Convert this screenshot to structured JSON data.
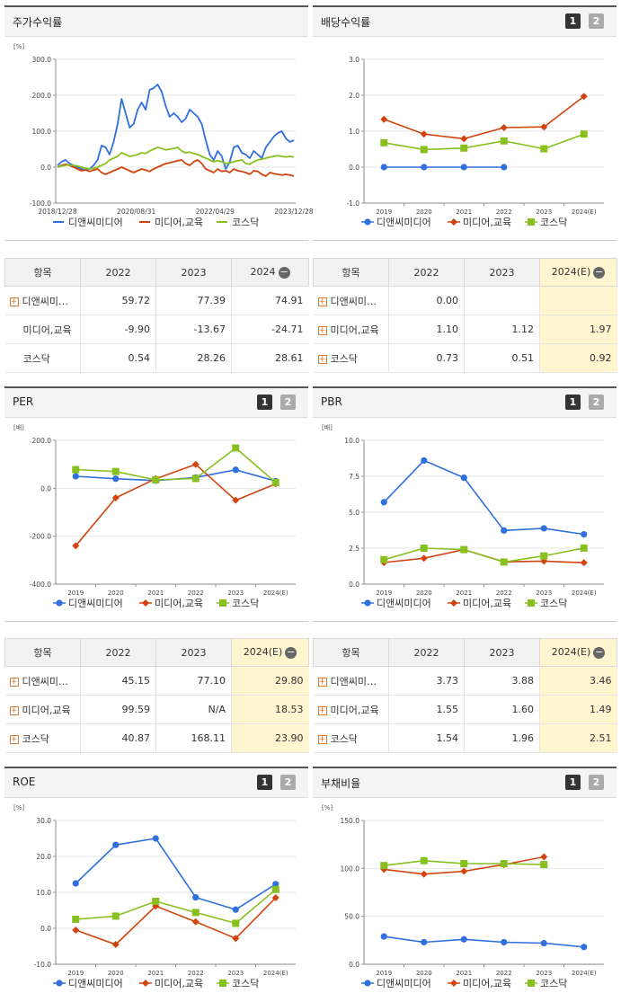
{
  "legend": {
    "s1": "디앤씨미디어",
    "s2": "미디어,교육",
    "s3": "코스닥"
  },
  "colors": {
    "s1": "#2f6fde",
    "s2": "#d2440f",
    "s3": "#88c020"
  },
  "buttons": {
    "one": "1",
    "two": "2"
  },
  "panels": {
    "stock": {
      "title": "주가수익률",
      "unit": "[%]"
    },
    "dividend": {
      "title": "배당수익률",
      "unit": ""
    },
    "per": {
      "title": "PER",
      "unit": "[배]"
    },
    "pbr": {
      "title": "PBR",
      "unit": "[배]"
    },
    "roe": {
      "title": "ROE",
      "unit": "[%]"
    },
    "debt": {
      "title": "부채비율",
      "unit": "[%]"
    }
  },
  "tables": {
    "stock": {
      "headers": [
        "항목",
        "2022",
        "2023",
        "2024"
      ],
      "rows": [
        {
          "name": "디앤씨미…",
          "v": [
            "59.72",
            "77.39",
            "74.91"
          ]
        },
        {
          "name": "미디어,교육",
          "v": [
            "-9.90",
            "-13.67",
            "-24.71"
          ]
        },
        {
          "name": "코스닥",
          "v": [
            "0.54",
            "28.26",
            "28.61"
          ]
        }
      ]
    },
    "dividend": {
      "headers": [
        "항목",
        "2022",
        "2023",
        "2024(E)"
      ],
      "rows": [
        {
          "name": "디앤씨미…",
          "v": [
            "0.00",
            "",
            ""
          ]
        },
        {
          "name": "미디어,교육",
          "v": [
            "1.10",
            "1.12",
            "1.97"
          ]
        },
        {
          "name": "코스닥",
          "v": [
            "0.73",
            "0.51",
            "0.92"
          ]
        }
      ]
    },
    "per": {
      "headers": [
        "항목",
        "2022",
        "2023",
        "2024(E)"
      ],
      "rows": [
        {
          "name": "디앤씨미…",
          "v": [
            "45.15",
            "77.10",
            "29.80"
          ]
        },
        {
          "name": "미디어,교육",
          "v": [
            "99.59",
            "N/A",
            "18.53"
          ]
        },
        {
          "name": "코스닥",
          "v": [
            "40.87",
            "168.11",
            "23.90"
          ]
        }
      ]
    },
    "pbr": {
      "headers": [
        "항목",
        "2022",
        "2023",
        "2024(E)"
      ],
      "rows": [
        {
          "name": "디앤씨미…",
          "v": [
            "3.73",
            "3.88",
            "3.46"
          ]
        },
        {
          "name": "미디어,교육",
          "v": [
            "1.55",
            "1.60",
            "1.49"
          ]
        },
        {
          "name": "코스닥",
          "v": [
            "1.54",
            "1.96",
            "2.51"
          ]
        }
      ]
    }
  },
  "chart_data": [
    {
      "id": "stock",
      "type": "line",
      "title": "주가수익률",
      "ylabel": "[%]",
      "ylim": [
        -100,
        300
      ],
      "yticks": [
        "-100.0",
        "0.0",
        "100.0",
        "200.0",
        "300.0"
      ],
      "xticks": [
        "2018/12/28",
        "2020/08/31",
        "2022/04/29",
        "2023/12/28"
      ],
      "n": 60,
      "series": [
        {
          "name": "디앤씨미디어",
          "values": [
            5,
            15,
            20,
            10,
            5,
            0,
            -5,
            -8,
            -5,
            5,
            20,
            60,
            55,
            35,
            70,
            120,
            190,
            150,
            110,
            120,
            160,
            180,
            160,
            215,
            220,
            230,
            210,
            170,
            140,
            150,
            140,
            125,
            135,
            160,
            150,
            140,
            120,
            75,
            35,
            20,
            45,
            30,
            -5,
            15,
            55,
            60,
            40,
            35,
            25,
            45,
            35,
            25,
            55,
            70,
            85,
            95,
            100,
            80,
            70,
            75
          ]
        },
        {
          "name": "미디어,교육",
          "values": [
            0,
            5,
            8,
            5,
            0,
            -5,
            -10,
            -8,
            -12,
            -8,
            -5,
            -15,
            -20,
            -15,
            -10,
            -5,
            0,
            -5,
            -10,
            -15,
            -10,
            -5,
            -8,
            -12,
            -5,
            0,
            5,
            10,
            12,
            15,
            18,
            20,
            10,
            5,
            15,
            20,
            10,
            -5,
            -10,
            -15,
            -5,
            -12,
            -10,
            -15,
            -5,
            -10,
            -12,
            -15,
            -20,
            -10,
            -12,
            -20,
            -25,
            -15,
            -18,
            -20,
            -22,
            -20,
            -22,
            -25
          ]
        },
        {
          "name": "코스닥",
          "values": [
            0,
            3,
            5,
            6,
            5,
            3,
            0,
            -3,
            -5,
            -3,
            0,
            5,
            10,
            20,
            25,
            30,
            40,
            35,
            30,
            32,
            35,
            40,
            38,
            45,
            50,
            55,
            52,
            48,
            50,
            52,
            55,
            45,
            40,
            42,
            38,
            35,
            30,
            25,
            20,
            15,
            18,
            15,
            10,
            12,
            15,
            18,
            20,
            10,
            8,
            15,
            20,
            22,
            25,
            28,
            30,
            32,
            30,
            28,
            30,
            28
          ]
        }
      ]
    },
    {
      "id": "dividend",
      "type": "line",
      "title": "배당수익률",
      "ylim": [
        -1,
        3
      ],
      "yticks": [
        "-1.0",
        "0.0",
        "1.0",
        "2.0",
        "3.0"
      ],
      "categories": [
        "2019",
        "2020",
        "2021",
        "2022",
        "2023",
        "2024(E)"
      ],
      "series": [
        {
          "name": "디앤씨미디어",
          "values": [
            0,
            0,
            0,
            0,
            null,
            null
          ]
        },
        {
          "name": "미디어,교육",
          "values": [
            1.33,
            0.92,
            0.79,
            1.1,
            1.12,
            1.97
          ]
        },
        {
          "name": "코스닥",
          "values": [
            0.68,
            0.49,
            0.53,
            0.73,
            0.51,
            0.92
          ]
        }
      ]
    },
    {
      "id": "per",
      "type": "line",
      "title": "PER",
      "ylabel": "[배]",
      "ylim": [
        -400,
        200
      ],
      "yticks": [
        "-400.0",
        "-200.0",
        "0.0",
        "200.0"
      ],
      "categories": [
        "2019",
        "2020",
        "2021",
        "2022",
        "2023",
        "2024(E)"
      ],
      "series": [
        {
          "name": "디앤씨미디어",
          "values": [
            50,
            40,
            32,
            45.15,
            77.1,
            29.8
          ]
        },
        {
          "name": "미디어,교육",
          "values": [
            -240,
            -40,
            40,
            99.59,
            -50,
            18.53
          ]
        },
        {
          "name": "코스닥",
          "values": [
            78,
            70,
            35,
            40.87,
            168.11,
            23.9
          ]
        }
      ]
    },
    {
      "id": "pbr",
      "type": "line",
      "title": "PBR",
      "ylabel": "[배]",
      "ylim": [
        0,
        10
      ],
      "yticks": [
        "0.0",
        "2.5",
        "5.0",
        "7.5",
        "10.0"
      ],
      "categories": [
        "2019",
        "2020",
        "2021",
        "2022",
        "2023",
        "2024(E)"
      ],
      "series": [
        {
          "name": "디앤씨미디어",
          "values": [
            5.7,
            8.6,
            7.4,
            3.73,
            3.88,
            3.46
          ]
        },
        {
          "name": "미디어,교육",
          "values": [
            1.5,
            1.8,
            2.4,
            1.55,
            1.6,
            1.49
          ]
        },
        {
          "name": "코스닥",
          "values": [
            1.7,
            2.5,
            2.4,
            1.54,
            1.96,
            2.51
          ]
        }
      ]
    },
    {
      "id": "roe",
      "type": "line",
      "title": "ROE",
      "ylabel": "[%]",
      "ylim": [
        -10,
        30
      ],
      "yticks": [
        "-10.0",
        "0.0",
        "10.0",
        "20.0",
        "30.0"
      ],
      "categories": [
        "2019",
        "2020",
        "2021",
        "2022",
        "2023",
        "2024(E)"
      ],
      "series": [
        {
          "name": "디앤씨미디어",
          "values": [
            12.5,
            23.2,
            25.0,
            8.6,
            5.2,
            12.3
          ]
        },
        {
          "name": "미디어,교육",
          "values": [
            -0.5,
            -4.5,
            6.2,
            1.8,
            -2.8,
            8.5
          ]
        },
        {
          "name": "코스닥",
          "values": [
            2.5,
            3.4,
            7.5,
            4.4,
            1.4,
            10.8
          ]
        }
      ]
    },
    {
      "id": "debt",
      "type": "line",
      "title": "부채비율",
      "ylabel": "[%]",
      "ylim": [
        0,
        150
      ],
      "yticks": [
        "0.0",
        "50.0",
        "100.0",
        "150.0"
      ],
      "categories": [
        "2019",
        "2020",
        "2021",
        "2022",
        "2023",
        "2024(E)"
      ],
      "series": [
        {
          "name": "디앤씨미디어",
          "values": [
            29,
            23,
            26,
            23,
            22,
            18
          ]
        },
        {
          "name": "미디어,교육",
          "values": [
            99,
            94,
            97,
            104,
            112,
            null
          ]
        },
        {
          "name": "코스닥",
          "values": [
            103,
            108,
            105,
            105,
            104,
            null
          ]
        }
      ]
    }
  ]
}
